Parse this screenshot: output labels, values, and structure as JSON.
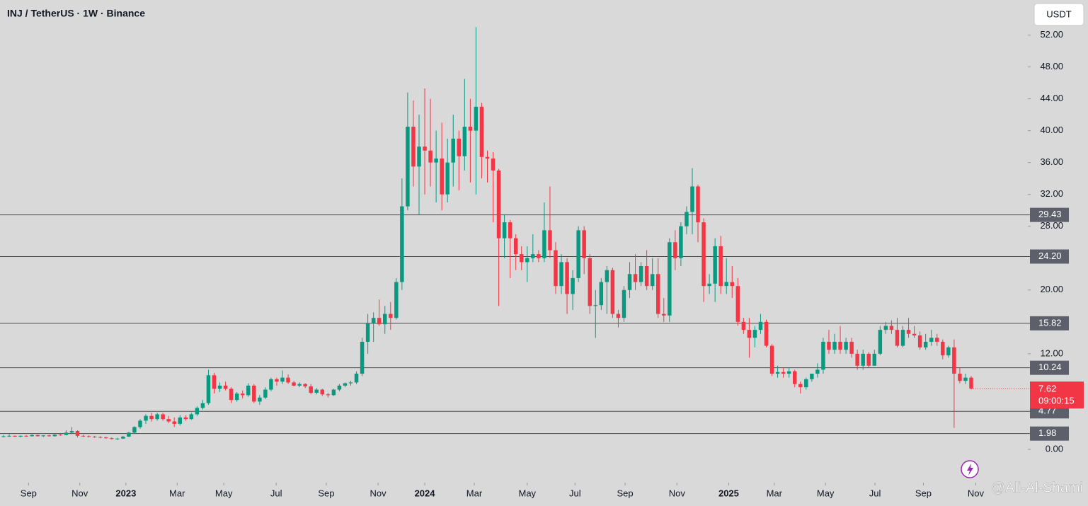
{
  "chart_data": {
    "type": "candlestick",
    "title": "INJ / TetherUS · 1W · Binance",
    "currency_button": "USDT",
    "watermark": "@Ali-Al-Shami",
    "up_color": "#089981",
    "down_color": "#f23645",
    "ylim": [
      -4,
      56.4
    ],
    "yticks": [
      {
        "value": 0,
        "label": "0.00"
      },
      {
        "value": 12,
        "label": "12.00"
      },
      {
        "value": 20,
        "label": "20.00"
      },
      {
        "value": 28,
        "label": "28.00"
      },
      {
        "value": 32,
        "label": "32.00"
      },
      {
        "value": 36,
        "label": "36.00"
      },
      {
        "value": 40,
        "label": "40.00"
      },
      {
        "value": 44,
        "label": "44.00"
      },
      {
        "value": 48,
        "label": "48.00"
      },
      {
        "value": 52,
        "label": "52.00"
      }
    ],
    "xlim": [
      -0.62,
      179.7
    ],
    "xticks": [
      {
        "value": 4.4,
        "label": "Sep"
      },
      {
        "value": 13.4,
        "label": "Nov"
      },
      {
        "value": 21.5,
        "label": "2023"
      },
      {
        "value": 30.5,
        "label": "Mar"
      },
      {
        "value": 38.7,
        "label": "May"
      },
      {
        "value": 47.9,
        "label": "Jul"
      },
      {
        "value": 56.7,
        "label": "Sep"
      },
      {
        "value": 65.8,
        "label": "Nov"
      },
      {
        "value": 74.0,
        "label": "2024"
      },
      {
        "value": 82.7,
        "label": "Mar"
      },
      {
        "value": 92.0,
        "label": "May"
      },
      {
        "value": 100.4,
        "label": "Jul"
      },
      {
        "value": 109.2,
        "label": "Sep"
      },
      {
        "value": 118.3,
        "label": "Nov"
      },
      {
        "value": 127.4,
        "label": "2025"
      },
      {
        "value": 135.4,
        "label": "Mar"
      },
      {
        "value": 144.4,
        "label": "May"
      },
      {
        "value": 153.1,
        "label": "Jul"
      },
      {
        "value": 161.6,
        "label": "Sep"
      },
      {
        "value": 170.8,
        "label": "Nov"
      }
    ],
    "levels": [
      29.43,
      {
        "value": 24.2,
        "label": "24.20"
      },
      15.82,
      10.24,
      4.77,
      1.98
    ],
    "last_price": 7.62,
    "countdown": "09:00:15",
    "candles": [
      [
        1.6,
        1.8,
        1.5,
        1.65
      ],
      [
        1.65,
        1.9,
        1.55,
        1.7
      ],
      [
        1.7,
        1.75,
        1.55,
        1.6
      ],
      [
        1.6,
        1.75,
        1.5,
        1.7
      ],
      [
        1.7,
        1.8,
        1.55,
        1.65
      ],
      [
        1.65,
        1.9,
        1.6,
        1.8
      ],
      [
        1.8,
        1.85,
        1.6,
        1.65
      ],
      [
        1.65,
        1.8,
        1.55,
        1.75
      ],
      [
        1.75,
        1.85,
        1.6,
        1.65
      ],
      [
        1.65,
        1.9,
        1.6,
        1.85
      ],
      [
        1.85,
        2.0,
        1.7,
        1.8
      ],
      [
        1.8,
        2.4,
        1.75,
        2.1
      ],
      [
        2.1,
        2.8,
        1.9,
        2.3
      ],
      [
        2.3,
        2.4,
        1.5,
        1.7
      ],
      [
        1.7,
        1.85,
        1.55,
        1.65
      ],
      [
        1.65,
        1.75,
        1.5,
        1.6
      ],
      [
        1.6,
        1.7,
        1.45,
        1.55
      ],
      [
        1.55,
        1.65,
        1.4,
        1.5
      ],
      [
        1.5,
        1.6,
        1.35,
        1.4
      ],
      [
        1.4,
        1.5,
        1.25,
        1.3
      ],
      [
        1.3,
        1.45,
        1.2,
        1.35
      ],
      [
        1.35,
        1.7,
        1.3,
        1.6
      ],
      [
        1.6,
        2.2,
        1.55,
        2.1
      ],
      [
        2.1,
        2.9,
        2.0,
        2.8
      ],
      [
        2.8,
        3.8,
        2.6,
        3.6
      ],
      [
        3.6,
        4.4,
        3.2,
        4.2
      ],
      [
        4.2,
        4.6,
        3.5,
        3.8
      ],
      [
        3.8,
        4.6,
        3.6,
        4.4
      ],
      [
        4.4,
        4.6,
        3.6,
        3.8
      ],
      [
        3.8,
        4.2,
        3.3,
        3.5
      ],
      [
        3.5,
        4.0,
        2.8,
        3.2
      ],
      [
        3.2,
        4.3,
        3.0,
        4.0
      ],
      [
        4.0,
        4.3,
        3.6,
        3.8
      ],
      [
        3.8,
        4.6,
        3.7,
        4.4
      ],
      [
        4.4,
        5.4,
        4.2,
        5.2
      ],
      [
        5.2,
        6.2,
        5.0,
        5.8
      ],
      [
        5.8,
        10.0,
        5.6,
        9.3
      ],
      [
        9.3,
        9.6,
        7.0,
        7.6
      ],
      [
        7.6,
        8.4,
        7.2,
        8.0
      ],
      [
        8.0,
        8.5,
        7.4,
        7.6
      ],
      [
        7.6,
        7.8,
        5.8,
        6.2
      ],
      [
        6.2,
        7.2,
        6.0,
        7.0
      ],
      [
        7.0,
        7.4,
        6.4,
        6.8
      ],
      [
        6.8,
        8.3,
        6.6,
        8.0
      ],
      [
        8.0,
        8.2,
        5.8,
        6.0
      ],
      [
        6.0,
        6.8,
        5.6,
        6.5
      ],
      [
        6.5,
        7.8,
        6.3,
        7.5
      ],
      [
        7.5,
        9.0,
        7.3,
        8.8
      ],
      [
        8.8,
        9.0,
        8.0,
        8.5
      ],
      [
        8.5,
        9.9,
        8.2,
        9.0
      ],
      [
        9.0,
        9.4,
        8.2,
        8.4
      ],
      [
        8.4,
        8.6,
        7.9,
        8.0
      ],
      [
        8.0,
        8.4,
        7.8,
        8.2
      ],
      [
        8.2,
        8.3,
        7.7,
        7.9
      ],
      [
        7.9,
        8.2,
        6.9,
        7.1
      ],
      [
        7.1,
        7.7,
        6.9,
        7.5
      ],
      [
        7.5,
        7.6,
        6.7,
        6.9
      ],
      [
        6.9,
        7.1,
        6.5,
        6.8
      ],
      [
        6.8,
        7.6,
        6.7,
        7.5
      ],
      [
        7.5,
        8.2,
        7.3,
        8.0
      ],
      [
        8.0,
        8.4,
        7.8,
        8.3
      ],
      [
        8.3,
        8.6,
        8.0,
        8.4
      ],
      [
        8.4,
        9.8,
        8.2,
        9.5
      ],
      [
        9.5,
        14.0,
        9.2,
        13.5
      ],
      [
        13.5,
        17.0,
        12.0,
        15.8
      ],
      [
        15.8,
        17.2,
        13.5,
        16.5
      ],
      [
        16.5,
        18.8,
        15.5,
        15.7
      ],
      [
        15.7,
        18.0,
        14.5,
        17.0
      ],
      [
        17.0,
        18.5,
        15.0,
        16.5
      ],
      [
        16.5,
        21.5,
        16.3,
        21.0
      ],
      [
        21.0,
        34.0,
        20.0,
        30.5
      ],
      [
        30.5,
        44.8,
        30.0,
        40.5
      ],
      [
        40.5,
        43.8,
        33.0,
        35.5
      ],
      [
        35.5,
        42.0,
        29.5,
        38.0
      ],
      [
        38.0,
        45.3,
        32.0,
        37.5
      ],
      [
        37.5,
        44.0,
        33.0,
        36.0
      ],
      [
        36.0,
        40.0,
        31.0,
        36.5
      ],
      [
        36.5,
        41.0,
        30.0,
        32.0
      ],
      [
        32.0,
        39.0,
        31.0,
        36.0
      ],
      [
        36.0,
        42.0,
        33.0,
        39.0
      ],
      [
        39.0,
        40.0,
        32.5,
        36.8
      ],
      [
        36.8,
        46.5,
        35.0,
        40.5
      ],
      [
        40.5,
        44.0,
        33.5,
        40.0
      ],
      [
        40.0,
        53.0,
        32.0,
        43.0
      ],
      [
        43.0,
        43.5,
        34.0,
        36.7
      ],
      [
        36.7,
        37.5,
        33.5,
        36.5
      ],
      [
        36.5,
        37.3,
        28.5,
        35.0
      ],
      [
        35.0,
        35.2,
        18.0,
        26.5
      ],
      [
        26.5,
        29.5,
        24.0,
        28.5
      ],
      [
        28.5,
        28.8,
        21.5,
        26.5
      ],
      [
        26.5,
        27.0,
        22.5,
        24.5
      ],
      [
        24.5,
        25.5,
        22.5,
        23.5
      ],
      [
        23.5,
        25.5,
        21.0,
        24.0
      ],
      [
        24.0,
        27.0,
        23.5,
        24.5
      ],
      [
        24.5,
        25.0,
        23.5,
        24.0
      ],
      [
        24.0,
        31.0,
        23.5,
        27.5
      ],
      [
        27.5,
        33.0,
        24.0,
        25.0
      ],
      [
        25.0,
        26.0,
        19.5,
        20.5
      ],
      [
        20.5,
        24.5,
        19.5,
        23.5
      ],
      [
        23.5,
        24.0,
        17.0,
        19.5
      ],
      [
        19.5,
        22.5,
        17.5,
        21.5
      ],
      [
        21.5,
        28.0,
        21.0,
        27.5
      ],
      [
        27.5,
        28.0,
        22.0,
        24.0
      ],
      [
        24.0,
        24.5,
        17.0,
        18.0
      ],
      [
        18.0,
        20.0,
        14.0,
        18.1
      ],
      [
        18.1,
        21.5,
        17.5,
        21.0
      ],
      [
        21.0,
        23.0,
        17.0,
        22.5
      ],
      [
        22.5,
        22.8,
        16.5,
        17.0
      ],
      [
        17.0,
        17.5,
        15.3,
        16.5
      ],
      [
        16.5,
        20.5,
        16.0,
        20.0
      ],
      [
        20.0,
        23.5,
        19.0,
        22.0
      ],
      [
        22.0,
        24.5,
        20.0,
        21.0
      ],
      [
        21.0,
        23.5,
        20.5,
        23.0
      ],
      [
        23.0,
        25.0,
        20.0,
        20.5
      ],
      [
        20.5,
        24.0,
        20.0,
        22.0
      ],
      [
        22.0,
        24.0,
        16.5,
        17.0
      ],
      [
        17.0,
        19.0,
        16.0,
        16.8
      ],
      [
        16.8,
        26.5,
        16.0,
        26.0
      ],
      [
        26.0,
        27.5,
        22.5,
        24.0
      ],
      [
        24.0,
        28.5,
        23.0,
        28.0
      ],
      [
        28.0,
        30.5,
        27.0,
        29.8
      ],
      [
        29.8,
        35.3,
        27.0,
        33.0
      ],
      [
        33.0,
        33.2,
        26.0,
        28.5
      ],
      [
        28.5,
        29.0,
        18.5,
        20.5
      ],
      [
        20.5,
        22.0,
        19.5,
        20.8
      ],
      [
        20.8,
        26.5,
        18.5,
        25.5
      ],
      [
        25.5,
        26.8,
        19.5,
        20.5
      ],
      [
        20.5,
        24.0,
        19.5,
        21.0
      ],
      [
        21.0,
        23.0,
        19.0,
        20.5
      ],
      [
        20.5,
        21.5,
        15.5,
        16.0
      ],
      [
        16.0,
        16.5,
        14.5,
        15.0
      ],
      [
        15.0,
        16.5,
        11.5,
        14.0
      ],
      [
        14.0,
        15.5,
        12.8,
        15.0
      ],
      [
        15.0,
        17.0,
        14.5,
        16.0
      ],
      [
        16.0,
        16.3,
        12.8,
        13.0
      ],
      [
        13.0,
        13.2,
        9.2,
        9.5
      ],
      [
        9.5,
        10.5,
        9.0,
        9.7
      ],
      [
        9.7,
        10.2,
        9.0,
        9.5
      ],
      [
        9.5,
        10.2,
        9.0,
        9.8
      ],
      [
        9.8,
        10.0,
        7.8,
        8.2
      ],
      [
        8.2,
        8.5,
        7.0,
        7.8
      ],
      [
        7.8,
        9.0,
        7.5,
        8.8
      ],
      [
        8.8,
        9.5,
        8.5,
        9.5
      ],
      [
        9.5,
        10.8,
        9.0,
        10.0
      ],
      [
        10.0,
        14.0,
        9.5,
        13.5
      ],
      [
        13.5,
        15.0,
        12.0,
        12.5
      ],
      [
        12.5,
        14.5,
        12.0,
        13.5
      ],
      [
        13.5,
        15.5,
        12.0,
        12.5
      ],
      [
        12.5,
        14.0,
        12.0,
        13.5
      ],
      [
        13.5,
        14.0,
        11.5,
        12.0
      ],
      [
        12.0,
        12.5,
        10.0,
        10.5
      ],
      [
        10.5,
        12.5,
        10.0,
        12.0
      ],
      [
        12.0,
        12.2,
        10.3,
        10.5
      ],
      [
        10.5,
        12.5,
        10.5,
        12.0
      ],
      [
        12.0,
        15.5,
        11.8,
        15.0
      ],
      [
        15.0,
        16.0,
        14.5,
        15.5
      ],
      [
        15.5,
        16.2,
        14.5,
        15.0
      ],
      [
        15.0,
        16.5,
        12.8,
        13.0
      ],
      [
        13.0,
        15.5,
        12.8,
        15.0
      ],
      [
        15.0,
        16.5,
        14.0,
        14.5
      ],
      [
        14.5,
        15.5,
        14.0,
        14.3
      ],
      [
        14.3,
        14.8,
        12.5,
        12.8
      ],
      [
        12.8,
        14.5,
        12.5,
        13.5
      ],
      [
        13.5,
        15.0,
        13.0,
        14.0
      ],
      [
        14.0,
        14.5,
        13.0,
        13.5
      ],
      [
        13.5,
        13.8,
        11.3,
        11.8
      ],
      [
        11.8,
        13.0,
        11.5,
        12.8
      ],
      [
        12.8,
        13.8,
        2.7,
        9.5
      ],
      [
        9.5,
        10.2,
        8.3,
        8.6
      ],
      [
        8.6,
        9.5,
        8.2,
        9.0
      ],
      [
        9.0,
        9.2,
        7.5,
        7.62
      ]
    ]
  }
}
